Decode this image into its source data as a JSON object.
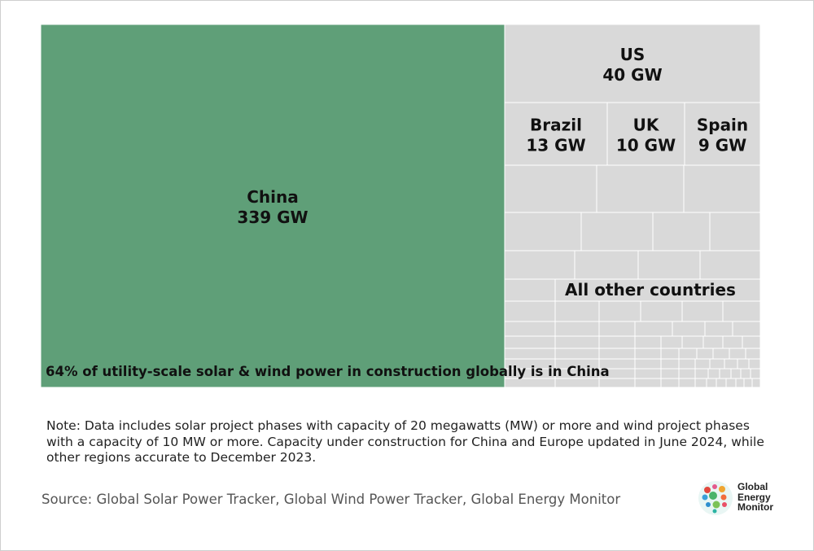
{
  "chart_data": {
    "type": "treemap",
    "unit": "GW",
    "title": "",
    "cells": [
      {
        "name": "China",
        "label": "China",
        "value": 339,
        "value_label": "339 GW",
        "color": "#5f9f78"
      },
      {
        "name": "US",
        "label": "US",
        "value": 40,
        "value_label": "40 GW",
        "color": "#d9d9d9"
      },
      {
        "name": "Brazil",
        "label": "Brazil",
        "value": 13,
        "value_label": "13 GW",
        "color": "#d9d9d9"
      },
      {
        "name": "UK",
        "label": "UK",
        "value": 10,
        "value_label": "10 GW",
        "color": "#d9d9d9"
      },
      {
        "name": "Spain",
        "label": "Spain",
        "value": 9,
        "value_label": "9 GW",
        "color": "#d9d9d9"
      }
    ],
    "other_label": "All other countries",
    "annotation": "64% of utility-scale solar & wind power in construction globally is in China"
  },
  "note": "Note: Data includes solar project phases with capacity of 20 megawatts (MW) or more and wind project phases with a capacity of 10 MW or more. Capacity under construction for China and Europe updated in June 2024, while other regions accurate to December 2023.",
  "source": "Source: Global Solar Power Tracker, Global Wind Power Tracker, Global Energy Monitor",
  "logo": {
    "line1": "Global",
    "line2": "Energy",
    "line3": "Monitor"
  },
  "colors": {
    "china": "#5f9f78",
    "other": "#d9d9d9",
    "divider": "#ffffff"
  }
}
